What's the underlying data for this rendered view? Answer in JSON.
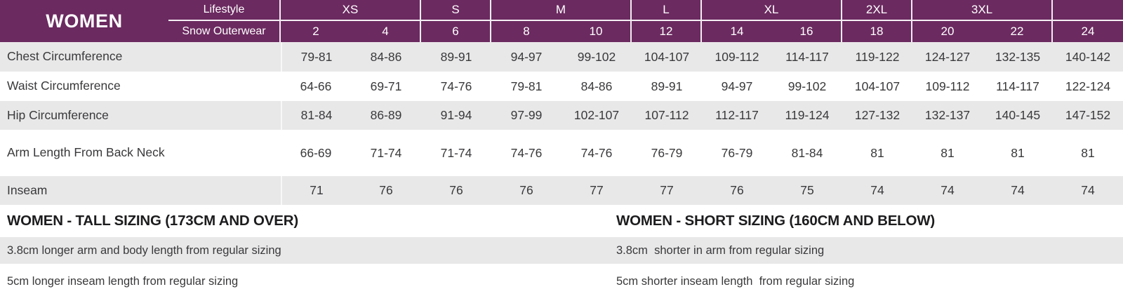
{
  "chart_data": {
    "type": "table",
    "title": "WOMEN",
    "category_rows": [
      "Lifestyle",
      "Snow Outerwear"
    ],
    "size_groups": [
      {
        "label": "XS",
        "span": 2
      },
      {
        "label": "S",
        "span": 1
      },
      {
        "label": "M",
        "span": 2
      },
      {
        "label": "L",
        "span": 1
      },
      {
        "label": "XL",
        "span": 2
      },
      {
        "label": "2XL",
        "span": 1
      },
      {
        "label": "3XL",
        "span": 2
      },
      {
        "label": "",
        "span": 1
      }
    ],
    "numeric_sizes": [
      "2",
      "4",
      "6",
      "8",
      "10",
      "12",
      "14",
      "16",
      "18",
      "20",
      "22",
      "24"
    ],
    "measurement_rows": [
      {
        "label": "Chest Circumference",
        "values": [
          "79-81",
          "84-86",
          "89-91",
          "94-97",
          "99-102",
          "104-107",
          "109-112",
          "114-117",
          "119-122",
          "124-127",
          "132-135",
          "140-142"
        ]
      },
      {
        "label": "Waist Circumference",
        "values": [
          "64-66",
          "69-71",
          "74-76",
          "79-81",
          "84-86",
          "89-91",
          "94-97",
          "99-102",
          "104-107",
          "109-112",
          "114-117",
          "122-124"
        ]
      },
      {
        "label": "Hip Circumference",
        "values": [
          "81-84",
          "86-89",
          "91-94",
          "97-99",
          "102-107",
          "107-112",
          "112-117",
          "119-124",
          "127-132",
          "132-137",
          "140-145",
          "147-152"
        ]
      },
      {
        "label": "Arm Length From Back Neck",
        "values": [
          "66-69",
          "71-74",
          "71-74",
          "74-76",
          "74-76",
          "76-79",
          "76-79",
          "81-84",
          "81",
          "81",
          "81",
          "81"
        ]
      },
      {
        "label": "Inseam",
        "values": [
          "71",
          "76",
          "76",
          "76",
          "77",
          "77",
          "76",
          "75",
          "74",
          "74",
          "74",
          "74"
        ]
      }
    ]
  },
  "footnotes": {
    "tall": {
      "heading": "WOMEN - TALL SIZING (173CM AND OVER)",
      "notes": [
        "3.8cm longer arm and body length from regular sizing",
        "5cm longer inseam length from regular sizing"
      ]
    },
    "short": {
      "heading": "WOMEN - SHORT SIZING (160CM AND BELOW)",
      "notes": [
        "3.8cm  shorter in arm from regular sizing",
        "5cm shorter inseam length  from regular sizing"
      ]
    }
  },
  "colors": {
    "header_purple": "#6B2A60",
    "row_gray": "#E9E8E9",
    "text_dark": "#39393B",
    "heading_black": "#1C1C1E"
  }
}
